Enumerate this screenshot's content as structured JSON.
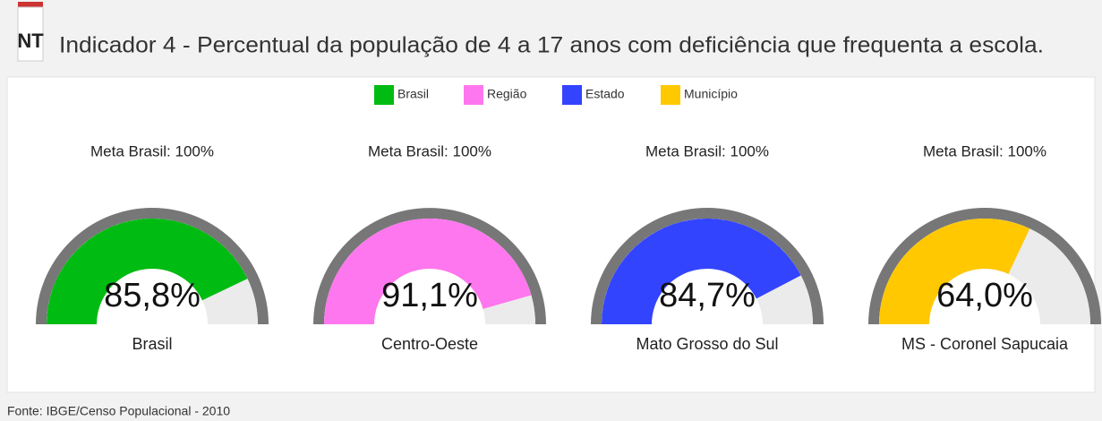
{
  "header": {
    "badge": "NT",
    "title": "Indicador 4 - Percentual da população de 4 a 17 anos com deficiência que frequenta a escola."
  },
  "chart_data": {
    "type": "gauge",
    "ylim": [
      0,
      100
    ],
    "series": [
      {
        "name": "Brasil",
        "color": "#00bb11",
        "category": "Brasil",
        "target_label": "Meta Brasil: 100%",
        "values": [
          85.8
        ],
        "value_labels": [
          "85,8%"
        ]
      },
      {
        "name": "Região",
        "color": "#ff77ee",
        "category": "Centro-Oeste",
        "target_label": "Meta Brasil: 100%",
        "values": [
          91.1
        ],
        "value_labels": [
          "91,1%"
        ]
      },
      {
        "name": "Estado",
        "color": "#3344ff",
        "category": "Mato Grosso do Sul",
        "target_label": "Meta Brasil: 100%",
        "values": [
          84.7
        ],
        "value_labels": [
          "84,7%"
        ]
      },
      {
        "name": "Município",
        "color": "#ffc800",
        "category": "MS - Coronel Sapucaia",
        "target_label": "Meta Brasil: 100%",
        "values": [
          64.0
        ],
        "value_labels": [
          "64,0%"
        ]
      }
    ]
  },
  "footer": {
    "source": "Fonte: IBGE/Censo Populacional - 2010"
  }
}
